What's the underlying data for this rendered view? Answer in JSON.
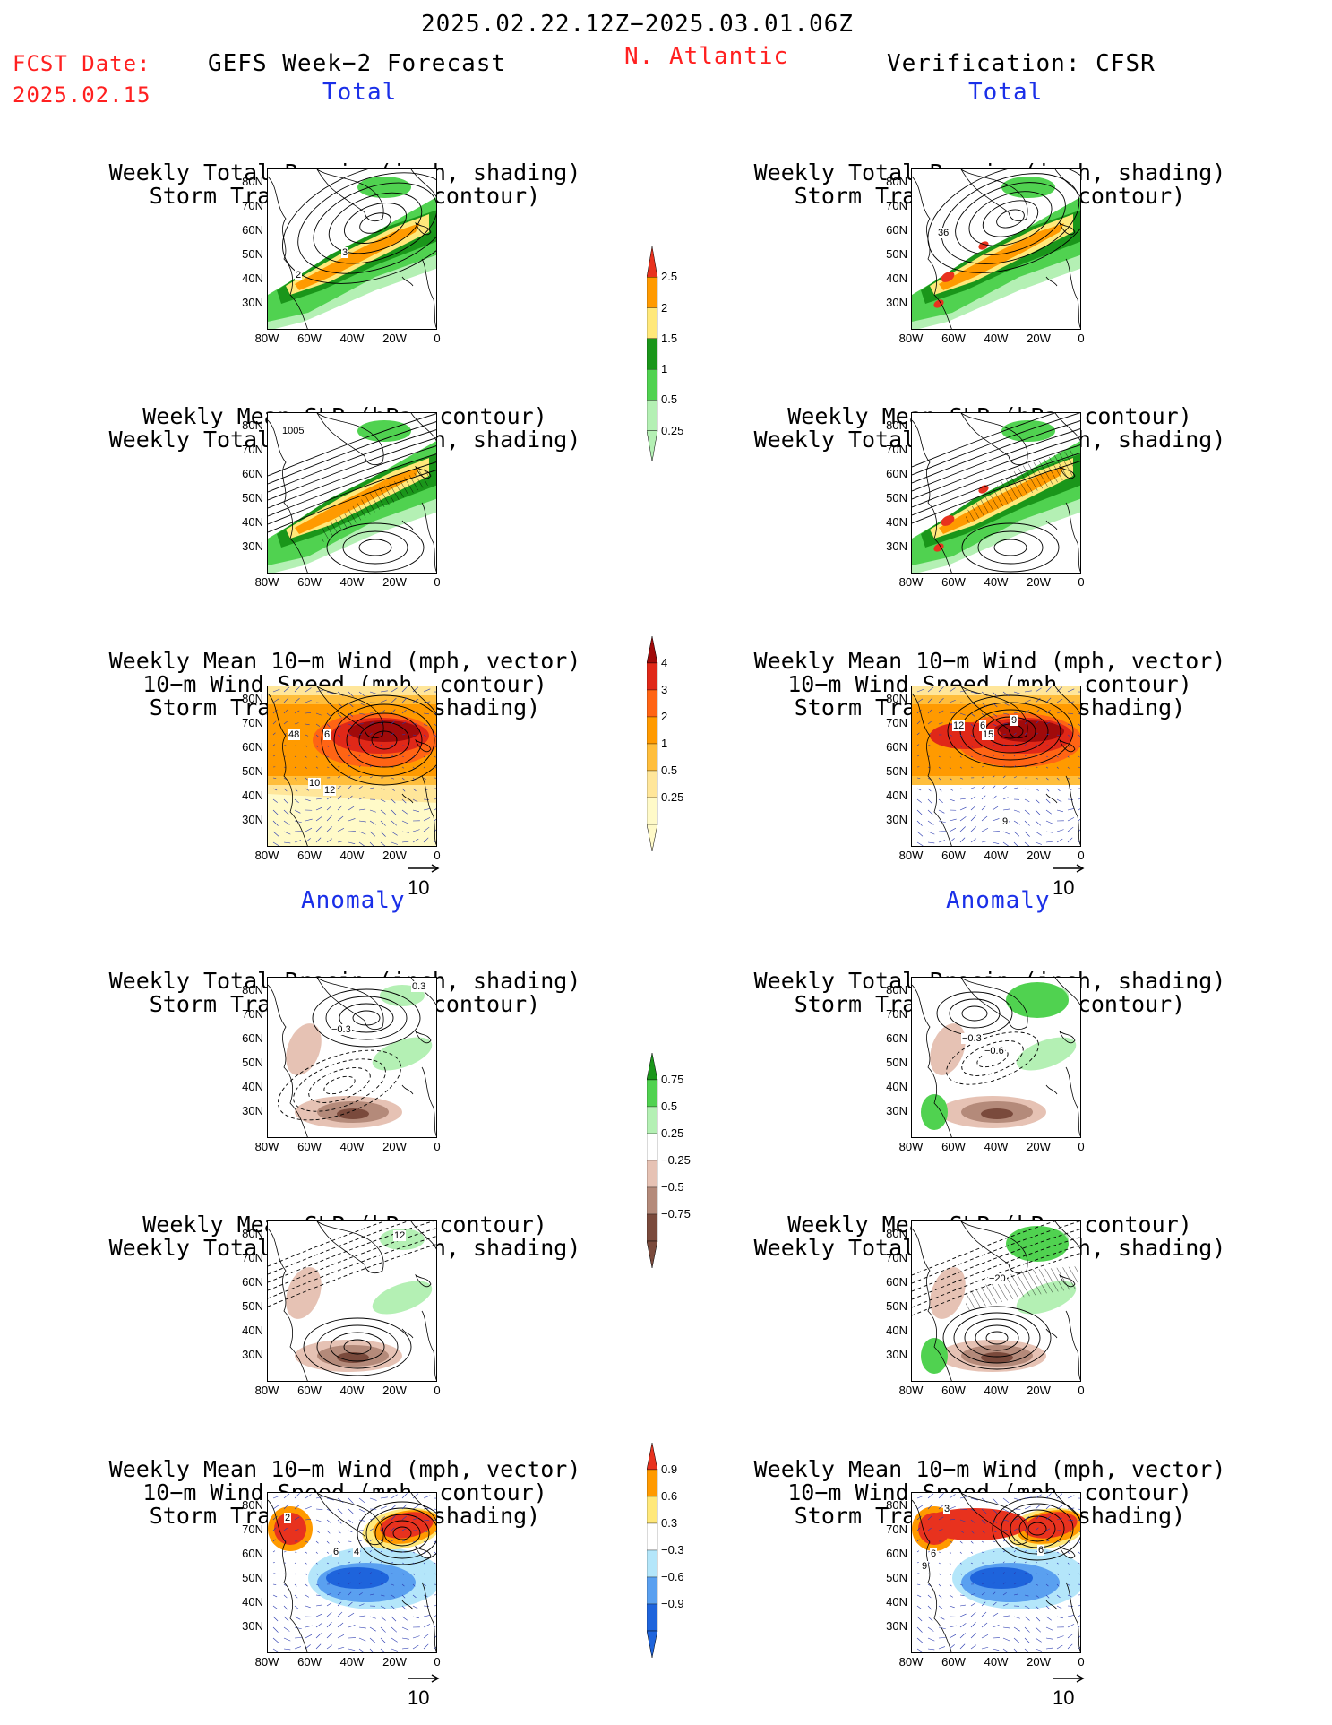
{
  "header": {
    "date_range": "2025.02.22.12Z−2025.03.01.06Z",
    "fcst_label": "FCST Date:",
    "fcst_date": "2025.02.15",
    "left_title": "GEFS Week−2 Forecast",
    "region": "N. Atlantic",
    "right_title": "Verification: CFSR"
  },
  "sections": {
    "total": "Total",
    "anomaly": "Anomaly"
  },
  "panel_titles": {
    "precip_storm": [
      "Weekly Total Precip (inch, shading)",
      "Storm Track Density (contour)"
    ],
    "slp_precip": [
      "Weekly Mean SLP (hPa, contour)",
      "Weekly Total Precip (inch, shading)"
    ],
    "wind_storm": [
      "Weekly Mean 10−m Wind (mph, vector)",
      "10−m Wind Speed (mph, contour)",
      "Storm Track Density (shading)"
    ]
  },
  "axes": {
    "lat_ticks": [
      "80N",
      "70N",
      "60N",
      "50N",
      "40N",
      "30N"
    ],
    "lon_ticks": [
      "80W",
      "60W",
      "40W",
      "20W",
      "0"
    ]
  },
  "vector_ref": "10",
  "contour_labels": {
    "r1_left": [
      "3",
      "2"
    ],
    "r1_right": [
      "36"
    ],
    "r2_left": [
      "1005"
    ],
    "r3_left": [
      "48",
      "6",
      "10",
      "12"
    ],
    "r3_right": [
      "12",
      "6",
      "9",
      "15",
      "9"
    ],
    "r4_left": [
      "0.3",
      "−0.3"
    ],
    "r4_right": [
      "−0.3",
      "−0.6"
    ],
    "r5_left": [
      "12"
    ],
    "r5_right": [
      "−20"
    ],
    "r6_left": [
      "2",
      "6",
      "4"
    ],
    "r6_right": [
      "3",
      "6",
      "9",
      "6"
    ]
  },
  "colorbars": [
    {
      "id": "precip_total",
      "labels": [
        "2.5",
        "2",
        "1.5",
        "1",
        "0.5",
        "0.25"
      ],
      "colors": [
        "#e8321e",
        "#ff9a00",
        "#ffe87a",
        "#1a961a",
        "#50d250",
        "#b4f0b4"
      ]
    },
    {
      "id": "storm_total",
      "labels": [
        "4",
        "3",
        "2",
        "1",
        "0.5",
        "0.25"
      ],
      "colors": [
        "#a00a0a",
        "#e02818",
        "#ff6414",
        "#ff9a00",
        "#ffbe3c",
        "#ffe69a",
        "#fffac8"
      ]
    },
    {
      "id": "precip_anom",
      "labels": [
        "0.75",
        "0.5",
        "0.25",
        "−0.25",
        "−0.5",
        "−0.75"
      ],
      "colors": [
        "#1a961a",
        "#50d250",
        "#b4f0b4",
        "#ffffff",
        "#e6c2b4",
        "#b48a7a",
        "#7a4a3c"
      ]
    },
    {
      "id": "storm_anom",
      "labels": [
        "0.9",
        "0.6",
        "0.3",
        "−0.3",
        "−0.6",
        "−0.9"
      ],
      "colors": [
        "#e8321e",
        "#ff9a00",
        "#ffe87a",
        "#ffffff",
        "#b4e6fa",
        "#5aa0f0",
        "#1e64dc"
      ]
    }
  ],
  "colors": {
    "accent_red": "#ff2020",
    "accent_blue": "#1a2fe8"
  }
}
